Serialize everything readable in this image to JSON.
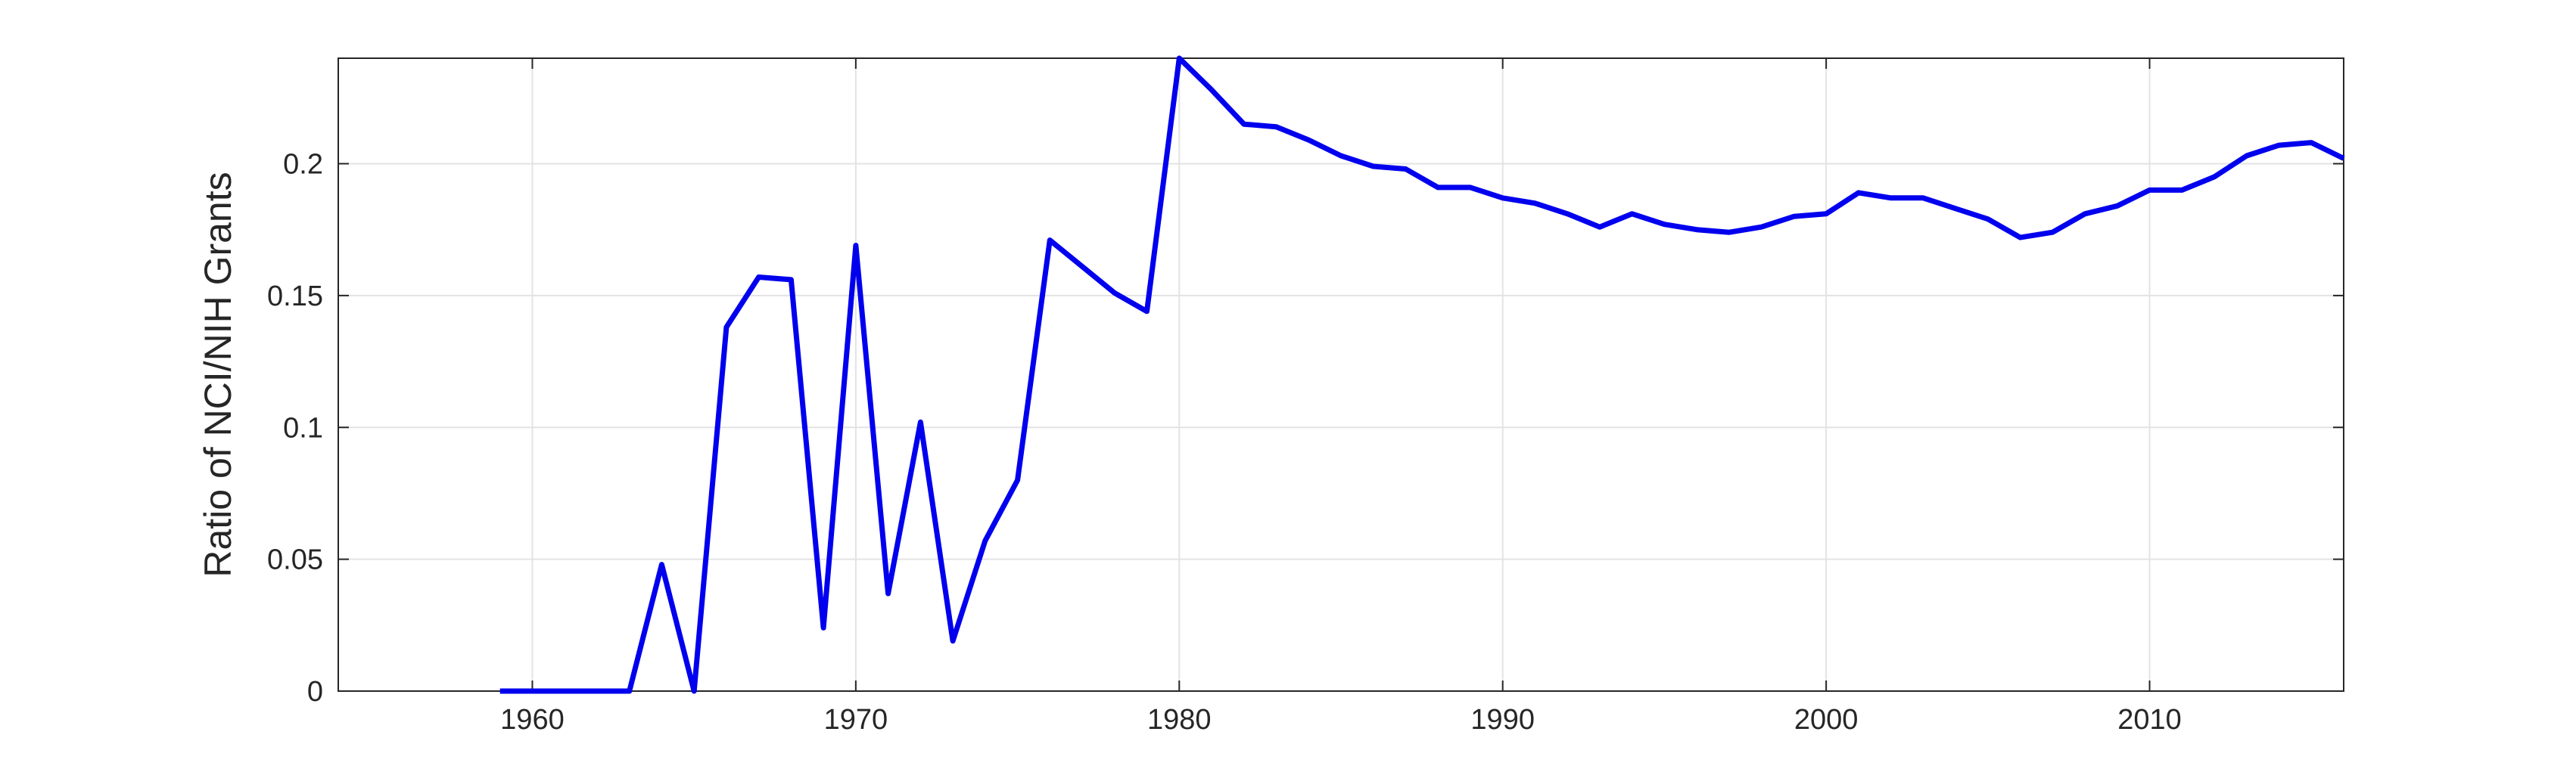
{
  "chart_data": {
    "type": "line",
    "title": "",
    "xlabel": "",
    "ylabel": "Ratio of NCI/NIH Grants",
    "xlim": [
      1954,
      2016
    ],
    "ylim": [
      0,
      0.24
    ],
    "xticks": [
      1960,
      1970,
      1980,
      1990,
      2000,
      2010
    ],
    "yticks": [
      0,
      0.05,
      0.1,
      0.15,
      0.2
    ],
    "ytick_labels": [
      "0",
      "0.05",
      "0.1",
      "0.15",
      "0.2"
    ],
    "grid": true,
    "legend": false,
    "series": [
      {
        "color": "#0000ee",
        "x": [
          1959,
          1960,
          1961,
          1962,
          1963,
          1964,
          1965,
          1966,
          1967,
          1968,
          1969,
          1970,
          1971,
          1972,
          1973,
          1974,
          1975,
          1976,
          1977,
          1978,
          1979,
          1980,
          1981,
          1982,
          1983,
          1984,
          1985,
          1986,
          1987,
          1988,
          1989,
          1990,
          1991,
          1992,
          1993,
          1994,
          1995,
          1996,
          1997,
          1998,
          1999,
          2000,
          2001,
          2002,
          2003,
          2004,
          2005,
          2006,
          2007,
          2008,
          2009,
          2010,
          2011,
          2012,
          2013,
          2014,
          2015,
          2016
        ],
        "y": [
          0,
          0,
          0,
          0,
          0,
          0.048,
          0,
          0.138,
          0.157,
          0.156,
          0.024,
          0.169,
          0.037,
          0.102,
          0.019,
          0.057,
          0.08,
          0.171,
          0.161,
          0.151,
          0.144,
          0.24,
          0.228,
          0.215,
          0.214,
          0.209,
          0.203,
          0.199,
          0.198,
          0.191,
          0.191,
          0.187,
          0.185,
          0.181,
          0.176,
          0.181,
          0.177,
          0.175,
          0.174,
          0.176,
          0.18,
          0.181,
          0.189,
          0.187,
          0.187,
          0.183,
          0.179,
          0.172,
          0.174,
          0.181,
          0.184,
          0.19,
          0.19,
          0.195,
          0.203,
          0.207,
          0.208,
          0.202
        ]
      }
    ]
  }
}
